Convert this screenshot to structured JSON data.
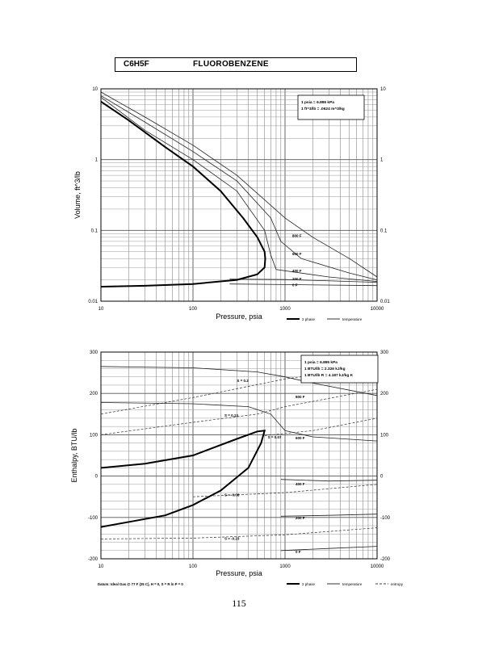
{
  "header": {
    "formula": "C6H5F",
    "name": "FLUOROBENZENE"
  },
  "page_number": "115",
  "legend_labels": {
    "two_phase": "2 phase",
    "temperature": "temperature",
    "entropy": "entropy"
  },
  "chart_data": [
    {
      "id": "volume",
      "type": "line",
      "xscale": "log",
      "yscale": "log",
      "xlim": [
        10,
        10000
      ],
      "ylim": [
        0.01,
        10
      ],
      "xlabel": "Pressure,  psia",
      "ylabel": "Volume,  ft^3/lb",
      "xticks": [
        "10",
        "100",
        "1000",
        "10000"
      ],
      "yticks_left": [
        "0.01",
        "0.1",
        "1",
        "10"
      ],
      "yticks_right": [
        "0.01",
        "0.1",
        "1",
        "10"
      ],
      "note_lines": [
        "1 psia  =  6.895 kPa",
        "1 ft^3/lb  =  .0624 m^3/kg"
      ],
      "legend": [
        "2 phase",
        "temperature"
      ],
      "two_phase_dome": [
        [
          10,
          6.6
        ],
        [
          20,
          3.6
        ],
        [
          50,
          1.5
        ],
        [
          100,
          0.8
        ],
        [
          200,
          0.36
        ],
        [
          350,
          0.15
        ],
        [
          500,
          0.08
        ],
        [
          600,
          0.05
        ],
        [
          610,
          0.04
        ],
        [
          600,
          0.03
        ],
        [
          500,
          0.024
        ],
        [
          300,
          0.02
        ],
        [
          100,
          0.0175
        ],
        [
          30,
          0.0165
        ],
        [
          10,
          0.016
        ]
      ],
      "isotherms": [
        {
          "label": "800 F",
          "label_at": [
            1200,
            0.085
          ],
          "points": [
            [
              10,
              9
            ],
            [
              30,
              4
            ],
            [
              100,
              1.6
            ],
            [
              300,
              0.6
            ],
            [
              1000,
              0.15
            ],
            [
              2000,
              0.08
            ],
            [
              5000,
              0.04
            ],
            [
              10000,
              0.022
            ]
          ]
        },
        {
          "label": "600 F",
          "label_at": [
            1200,
            0.047
          ],
          "points": [
            [
              10,
              8
            ],
            [
              30,
              3.4
            ],
            [
              100,
              1.3
            ],
            [
              300,
              0.5
            ],
            [
              700,
              0.15
            ],
            [
              900,
              0.07
            ],
            [
              1500,
              0.04
            ],
            [
              5000,
              0.025
            ],
            [
              10000,
              0.02
            ]
          ]
        },
        {
          "label": "400 F",
          "label_at": [
            1200,
            0.027
          ],
          "points": [
            [
              10,
              7.6
            ],
            [
              30,
              2.6
            ],
            [
              100,
              1.0
            ],
            [
              300,
              0.36
            ],
            [
              600,
              0.1
            ],
            [
              700,
              0.045
            ],
            [
              800,
              0.028
            ],
            [
              3000,
              0.022
            ],
            [
              10000,
              0.019
            ]
          ]
        },
        {
          "label": "200 F",
          "label_at": [
            1200,
            0.021
          ],
          "points": [
            [
              250,
              0.0205
            ],
            [
              1000,
              0.0202
            ],
            [
              10000,
              0.0185
            ]
          ]
        },
        {
          "label": "0 F",
          "label_at": [
            1200,
            0.0172
          ],
          "points": [
            [
              250,
              0.0175
            ],
            [
              1000,
              0.0172
            ],
            [
              10000,
              0.0166
            ]
          ]
        }
      ]
    },
    {
      "id": "enthalpy",
      "type": "line",
      "xscale": "log",
      "yscale": "linear",
      "xlim": [
        10,
        10000
      ],
      "ylim": [
        -200,
        300
      ],
      "xlabel": "Pressure,  psia",
      "ylabel": "Enthalpy,  BTU/lb",
      "xticks": [
        "10",
        "100",
        "1000",
        "10000"
      ],
      "yticks_left": [
        "-200",
        "-100",
        "0",
        "100",
        "200",
        "300"
      ],
      "yticks_right": [
        "-200",
        "-100",
        "0",
        "100",
        "200",
        "300"
      ],
      "note_lines": [
        "1 psia  =  6.895 kPa",
        "1 BTU/lb  =  2.326 kJ/kg",
        "1 BTU/lb R  =  4.187 kJ/kg K"
      ],
      "legend": [
        "2 phase",
        "temperature",
        "entropy"
      ],
      "datum_note": "Datum: Ideal Gas @ 77 F (25 C),  H  =  0,  S  =  R ln P  =  0",
      "two_phase_dome": [
        [
          10,
          -123
        ],
        [
          50,
          -95
        ],
        [
          100,
          -70
        ],
        [
          200,
          -35
        ],
        [
          400,
          20
        ],
        [
          550,
          80
        ],
        [
          600,
          110
        ],
        [
          500,
          108
        ],
        [
          300,
          90
        ],
        [
          100,
          50
        ],
        [
          30,
          30
        ],
        [
          10,
          20
        ]
      ],
      "isotherms": [
        {
          "label": "800 F",
          "label_at": [
            1300,
            193
          ],
          "points": [
            [
              10,
              265
            ],
            [
              100,
              262
            ],
            [
              500,
              252
            ],
            [
              1000,
              240
            ],
            [
              2000,
              225
            ],
            [
              10000,
              195
            ]
          ]
        },
        {
          "label": "600 F",
          "label_at": [
            1300,
            93
          ],
          "points": [
            [
              10,
              178
            ],
            [
              100,
              175
            ],
            [
              400,
              168
            ],
            [
              700,
              150
            ],
            [
              1000,
              110
            ],
            [
              2000,
              95
            ],
            [
              10000,
              85
            ]
          ]
        },
        {
          "label": "400 F",
          "label_at": [
            1300,
            -18
          ],
          "points": [
            [
              900,
              -8
            ],
            [
              3000,
              -12
            ],
            [
              10000,
              -10
            ]
          ]
        },
        {
          "label": "200 F",
          "label_at": [
            1300,
            -100
          ],
          "points": [
            [
              900,
              -97
            ],
            [
              3000,
              -95
            ],
            [
              10000,
              -92
            ]
          ]
        },
        {
          "label": "0 F",
          "label_at": [
            1300,
            -182
          ],
          "points": [
            [
              900,
              -180
            ],
            [
              3000,
              -175
            ],
            [
              10000,
              -170
            ]
          ]
        }
      ],
      "entropy_lines": [
        {
          "label": "S = 0.2",
          "label_at": [
            300,
            232
          ],
          "points": [
            [
              10,
              150
            ],
            [
              100,
              190
            ],
            [
              1000,
              235
            ],
            [
              10000,
              265
            ]
          ]
        },
        {
          "label": "S = 0.13",
          "label_at": [
            220,
            148
          ],
          "points": [
            [
              10,
              100
            ],
            [
              100,
              130
            ],
            [
              500,
              150
            ],
            [
              1000,
              168
            ],
            [
              10000,
              210
            ]
          ]
        },
        {
          "label": "S = 0.07",
          "label_at": [
            650,
            95
          ],
          "points": [
            [
              600,
              98
            ],
            [
              2000,
              110
            ],
            [
              10000,
              140
            ]
          ]
        },
        {
          "label": "S = -0.08",
          "label_at": [
            220,
            -45
          ],
          "points": [
            [
              100,
              -50
            ],
            [
              1000,
              -40
            ],
            [
              10000,
              -20
            ]
          ]
        },
        {
          "label": "S = -0.23",
          "label_at": [
            220,
            -150
          ],
          "points": [
            [
              10,
              -152
            ],
            [
              100,
              -150
            ],
            [
              1000,
              -142
            ],
            [
              10000,
              -125
            ]
          ]
        }
      ]
    }
  ]
}
